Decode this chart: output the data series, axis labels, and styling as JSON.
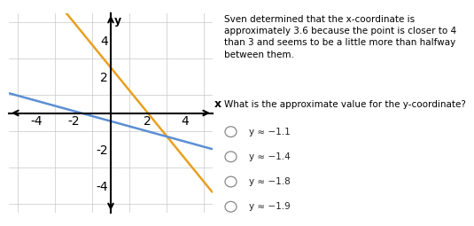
{
  "orange_line": {
    "slope": -1.25,
    "intercept": 2.5,
    "color": "#E8A020",
    "linewidth": 1.8
  },
  "blue_line": {
    "slope": -0.28,
    "intercept": -0.45,
    "color": "#5B8FD4",
    "linewidth": 1.8
  },
  "xlim": [
    -5.5,
    5.5
  ],
  "ylim": [
    -5.5,
    5.5
  ],
  "xticks": [
    -4,
    -2,
    2,
    4
  ],
  "yticks": [
    -4,
    -2,
    2,
    4
  ],
  "grid_color": "#C8C8C8",
  "axis_color": "#000000",
  "xlabel": "x",
  "ylabel": "y",
  "paragraph1": "Sven determined that the x-coordinate is\napproximately 3.6 because the point is closer to 4\nthan 3 and seems to be a little more than halfway\nbetween them.",
  "paragraph2": "What is the approximate value for the y-coordinate?",
  "choices": [
    "y ≈ −1.1",
    "y ≈ −1.4",
    "y ≈ −1.8",
    "y ≈ −1.9"
  ],
  "bg_color": "#FFFFFF",
  "tick_fontsize": 7,
  "label_fontsize": 8,
  "text_fontsize": 7.5,
  "choice_fontsize": 7.5
}
